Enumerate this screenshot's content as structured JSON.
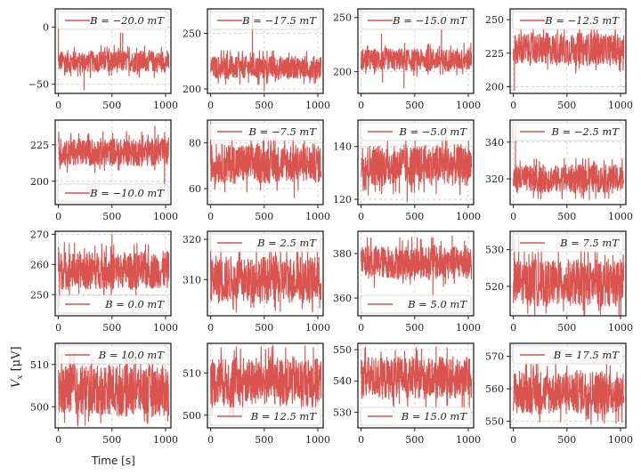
{
  "chart_data": [
    {
      "type": "line",
      "legend": "B = −20.0 mT",
      "B": -20.0,
      "xlim": [
        -30,
        1050
      ],
      "ylim": [
        -58,
        16
      ],
      "yticks": [
        0,
        -50
      ],
      "xticks": [
        0,
        500,
        1000
      ],
      "band": [
        -40,
        -20
      ],
      "mean": -30,
      "spikes": [
        [
          0,
          12
        ],
        [
          240,
          -55
        ],
        [
          580,
          -5
        ],
        [
          600,
          -5
        ]
      ],
      "legend_loc": "upper right"
    },
    {
      "type": "line",
      "legend": "B = −17.5 mT",
      "B": -17.5,
      "xlim": [
        -30,
        1050
      ],
      "ylim": [
        196,
        272
      ],
      "yticks": [
        200,
        250
      ],
      "xticks": [
        0,
        500,
        1000
      ],
      "band": [
        208,
        230
      ],
      "mean": 219,
      "spikes": [
        [
          390,
          268
        ],
        [
          500,
          198
        ]
      ],
      "legend_loc": "upper right"
    },
    {
      "type": "line",
      "legend": "B = −15.0 mT",
      "B": -15.0,
      "xlim": [
        -30,
        1050
      ],
      "ylim": [
        180,
        258
      ],
      "yticks": [
        200,
        250
      ],
      "xticks": [
        0,
        500,
        1000
      ],
      "band": [
        200,
        222
      ],
      "mean": 211,
      "spikes": [
        [
          190,
          235
        ],
        [
          400,
          185
        ],
        [
          750,
          256
        ],
        [
          200,
          190
        ]
      ],
      "legend_loc": "upper right"
    },
    {
      "type": "line",
      "legend": "B = −12.5 mT",
      "B": -12.5,
      "xlim": [
        -30,
        1050
      ],
      "ylim": [
        195,
        258
      ],
      "yticks": [
        200,
        225,
        250
      ],
      "xticks": [
        0,
        500,
        1000
      ],
      "band": [
        215,
        240
      ],
      "mean": 228,
      "spikes": [
        [
          10,
          197
        ],
        [
          950,
          255
        ]
      ],
      "legend_loc": "upper right"
    },
    {
      "type": "line",
      "legend": "B = −10.0 mT",
      "B": -10.0,
      "xlim": [
        -30,
        1050
      ],
      "ylim": [
        184,
        242
      ],
      "yticks": [
        200,
        225
      ],
      "xticks": [
        0,
        500,
        1000
      ],
      "band": [
        210,
        230
      ],
      "mean": 220,
      "spikes": [
        [
          900,
          238
        ],
        [
          990,
          190
        ]
      ],
      "legend_loc": "lower right"
    },
    {
      "type": "line",
      "legend": "B = −7.5 mT",
      "B": -7.5,
      "xlim": [
        -30,
        1050
      ],
      "ylim": [
        53,
        90
      ],
      "yticks": [
        60,
        80
      ],
      "xticks": [
        0,
        500,
        1000
      ],
      "band": [
        62,
        80
      ],
      "mean": 71,
      "spikes": [
        [
          0,
          89
        ],
        [
          780,
          56
        ]
      ],
      "legend_loc": "upper right"
    },
    {
      "type": "line",
      "legend": "B = −5.0 mT",
      "B": -5.0,
      "xlim": [
        -30,
        1050
      ],
      "ylim": [
        118,
        150
      ],
      "yticks": [
        120,
        140
      ],
      "xticks": [
        0,
        500,
        1000
      ],
      "band": [
        125,
        141
      ],
      "mean": 133,
      "spikes": [
        [
          430,
          119
        ],
        [
          800,
          148
        ]
      ],
      "legend_loc": "upper right"
    },
    {
      "type": "line",
      "legend": "B = −2.5 mT",
      "B": -2.5,
      "xlim": [
        -30,
        1050
      ],
      "ylim": [
        306,
        352
      ],
      "yticks": [
        320,
        340
      ],
      "xticks": [
        0,
        500,
        1000
      ],
      "band": [
        312,
        328
      ],
      "mean": 320,
      "spikes": [
        [
          20,
          349
        ]
      ],
      "legend_loc": "upper right"
    },
    {
      "type": "line",
      "legend": "B = 0.0 mT",
      "B": 0.0,
      "xlim": [
        -30,
        1050
      ],
      "ylim": [
        243,
        271
      ],
      "yticks": [
        250,
        260,
        270
      ],
      "xticks": [
        0,
        500,
        1000
      ],
      "band": [
        251,
        264
      ],
      "mean": 258,
      "spikes": [
        [
          500,
          270
        ],
        [
          10,
          246
        ]
      ],
      "legend_loc": "lower right"
    },
    {
      "type": "line",
      "legend": "B = 2.5 mT",
      "B": 2.5,
      "xlim": [
        -30,
        1050
      ],
      "ylim": [
        301,
        322
      ],
      "yticks": [
        310,
        320
      ],
      "xticks": [
        0,
        500,
        1000
      ],
      "band": [
        304,
        316
      ],
      "mean": 310,
      "spikes": [
        [
          0,
          321
        ],
        [
          650,
          302
        ]
      ],
      "legend_loc": "upper right"
    },
    {
      "type": "line",
      "legend": "B = 5.0 mT",
      "B": 5.0,
      "xlim": [
        -30,
        1050
      ],
      "ylim": [
        352,
        390
      ],
      "yticks": [
        360,
        380
      ],
      "xticks": [
        0,
        500,
        1000
      ],
      "band": [
        368,
        384
      ],
      "mean": 376,
      "spikes": [
        [
          670,
          355
        ],
        [
          850,
          388
        ]
      ],
      "legend_loc": "lower right"
    },
    {
      "type": "line",
      "legend": "B = 7.5 mT",
      "B": 7.5,
      "xlim": [
        -30,
        1050
      ],
      "ylim": [
        512,
        535
      ],
      "yticks": [
        520,
        530
      ],
      "xticks": [
        0,
        500,
        1000
      ],
      "band": [
        515,
        528
      ],
      "mean": 521,
      "spikes": [
        [
          50,
          534
        ],
        [
          10,
          533
        ]
      ],
      "legend_loc": "upper right"
    },
    {
      "type": "line",
      "legend": "B = 10.0 mT",
      "B": 10.0,
      "xlim": [
        -30,
        1050
      ],
      "ylim": [
        495,
        515
      ],
      "yticks": [
        500,
        510
      ],
      "xticks": [
        0,
        500,
        1000
      ],
      "band": [
        497,
        510
      ],
      "mean": 504,
      "spikes": [
        [
          720,
          514
        ]
      ],
      "legend_loc": "upper right"
    },
    {
      "type": "line",
      "legend": "B = 12.5 mT",
      "B": 12.5,
      "xlim": [
        -30,
        1050
      ],
      "ylim": [
        497,
        517
      ],
      "yticks": [
        500,
        510
      ],
      "xticks": [
        0,
        500,
        1000
      ],
      "band": [
        502,
        514
      ],
      "mean": 508,
      "spikes": [
        [
          700,
          516
        ]
      ],
      "legend_loc": "lower right"
    },
    {
      "type": "line",
      "legend": "B = 15.0 mT",
      "B": 15.0,
      "xlim": [
        -30,
        1050
      ],
      "ylim": [
        525,
        552
      ],
      "yticks": [
        530,
        540,
        550
      ],
      "xticks": [
        0,
        500,
        1000
      ],
      "band": [
        534,
        548
      ],
      "mean": 541,
      "spikes": [
        [
          960,
          527
        ],
        [
          700,
          551
        ]
      ],
      "legend_loc": "lower right"
    },
    {
      "type": "line",
      "legend": "B = 17.5 mT",
      "B": 17.5,
      "xlim": [
        -30,
        1050
      ],
      "ylim": [
        548,
        574
      ],
      "yticks": [
        550,
        560,
        570
      ],
      "xticks": [
        0,
        500,
        1000
      ],
      "band": [
        552,
        566
      ],
      "mean": 559,
      "spikes": [
        [
          870,
          572
        ]
      ],
      "legend_loc": "upper right"
    }
  ],
  "figure": {
    "ylabel": "V_x [μV]",
    "ylabel_main": "V",
    "ylabel_sub": "x",
    "ylabel_unit": " [μV]",
    "xlabel": "Time [s]",
    "line_color": "#d9534f",
    "grid": "dashed",
    "layout": "4x4"
  }
}
